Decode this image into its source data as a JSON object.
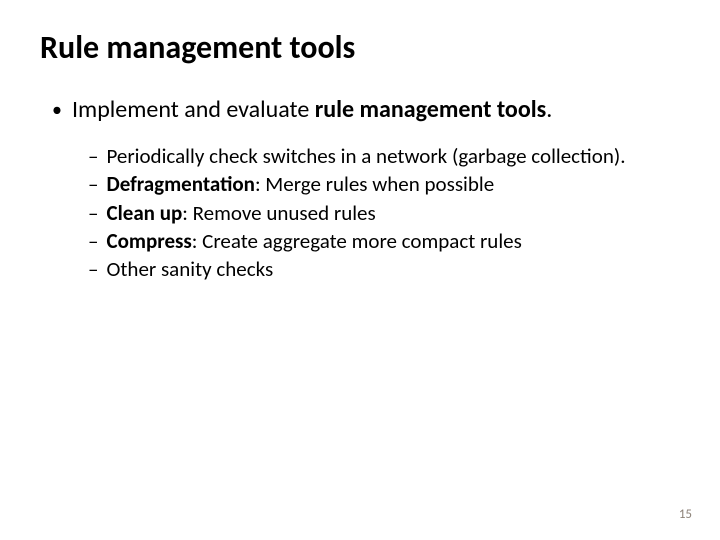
{
  "title": "Rule management tools",
  "level1": {
    "bullet": "•",
    "text_before": "Implement and evaluate ",
    "text_bold": "rule management tools",
    "text_after": "."
  },
  "level2": {
    "bullet": "–",
    "items": [
      {
        "prefix_bold": "",
        "rest": "Periodically check switches in a network (garbage collection)."
      },
      {
        "prefix_bold": "Defragmentation",
        "rest": ": Merge rules when possible"
      },
      {
        "prefix_bold": "Clean up",
        "rest": ": Remove unused rules"
      },
      {
        "prefix_bold": "Compress",
        "rest": ": Create aggregate more compact rules"
      },
      {
        "prefix_bold": "",
        "rest": "Other sanity checks"
      }
    ]
  },
  "page_number": "15",
  "colors": {
    "background": "#ffffff",
    "text": "#000000",
    "page_number": "#8c8278"
  }
}
